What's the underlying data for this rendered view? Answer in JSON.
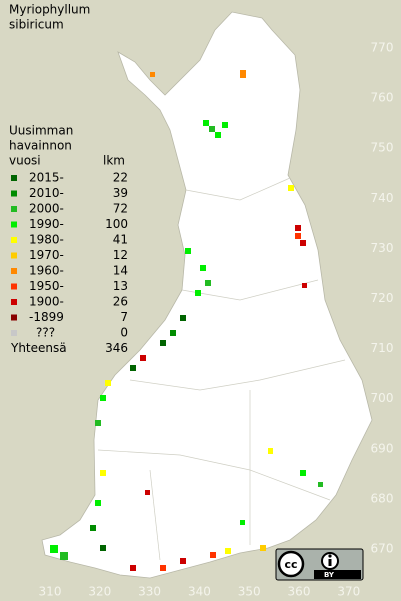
{
  "title": [
    "Myriophyllum",
    "sibiricum"
  ],
  "legend": {
    "heading": [
      "Uusimman",
      "havainnon",
      "vuosi"
    ],
    "count_heading": "lkm",
    "entries": [
      {
        "label": "2015-",
        "count": 22,
        "color": "#006400"
      },
      {
        "label": "2010-",
        "count": 39,
        "color": "#008c00"
      },
      {
        "label": "2000-",
        "count": 72,
        "color": "#22bb22"
      },
      {
        "label": "1990-",
        "count": 100,
        "color": "#00ee00"
      },
      {
        "label": "1980-",
        "count": 41,
        "color": "#ffff00"
      },
      {
        "label": "1970-",
        "count": 12,
        "color": "#ffcc00"
      },
      {
        "label": "1960-",
        "count": 14,
        "color": "#ff8800"
      },
      {
        "label": "1950-",
        "count": 13,
        "color": "#ff3300"
      },
      {
        "label": "1900-",
        "count": 26,
        "color": "#cc0000"
      },
      {
        "label": "-1899",
        "count": 7,
        "color": "#880000"
      },
      {
        "label": "???",
        "count": 0,
        "color": "#c8c8c8"
      }
    ],
    "total_label": "Yhteensä",
    "total": 346
  },
  "x_ticks": [
    310,
    320,
    330,
    340,
    350,
    360,
    370
  ],
  "y_ticks": [
    670,
    680,
    690,
    700,
    710,
    720,
    730,
    740,
    750,
    760,
    770
  ],
  "license": "BY"
}
